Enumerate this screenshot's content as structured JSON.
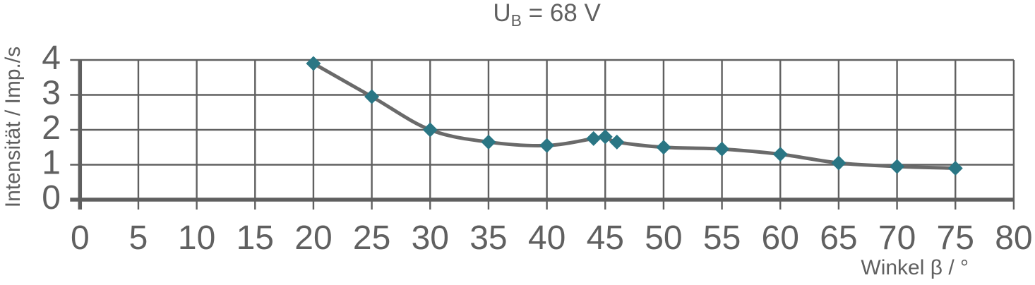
{
  "chart_data": {
    "type": "line",
    "title": "U_B = 68 V",
    "title_parts": {
      "base": "U",
      "subscript": "B",
      "rest": " = 68 V"
    },
    "xlabel": "Winkel β / °",
    "ylabel": "Intensität / Imp./s",
    "xlim": [
      0,
      80
    ],
    "ylim": [
      0,
      4
    ],
    "x_ticks": [
      0,
      5,
      10,
      15,
      20,
      25,
      30,
      35,
      40,
      45,
      50,
      55,
      60,
      65,
      70,
      75,
      80
    ],
    "y_ticks": [
      0,
      1,
      2,
      3,
      4
    ],
    "grid": true,
    "legend": "none",
    "series": [
      {
        "name": "Intensität",
        "marker": "diamond",
        "x": [
          20,
          25,
          30,
          35,
          40,
          44,
          45,
          46,
          50,
          55,
          60,
          65,
          70,
          75
        ],
        "y": [
          3.9,
          2.95,
          2.0,
          1.65,
          1.55,
          1.75,
          1.8,
          1.65,
          1.5,
          1.45,
          1.3,
          1.05,
          0.95,
          0.9
        ]
      }
    ],
    "colors": {
      "background": "#ffffff",
      "grid": "#606060",
      "axis": "#5f5f5f",
      "text": "#606060",
      "line": "#6a6a6a",
      "marker": "#2a7684"
    }
  }
}
